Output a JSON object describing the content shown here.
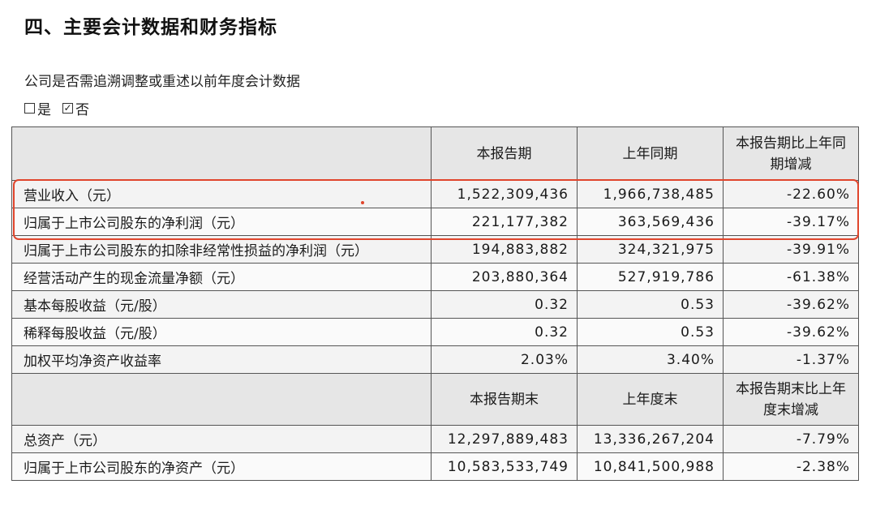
{
  "heading": "四、主要会计数据和财务指标",
  "subtitle": "公司是否需追溯调整或重述以前年度会计数据",
  "options": [
    {
      "mark": "",
      "label": "是"
    },
    {
      "mark": "✓",
      "label": "否"
    }
  ],
  "header1": {
    "label": "",
    "col1": "本报告期",
    "col2": "上年同期",
    "col3": "本报告期比上年同期增减"
  },
  "rows1": [
    {
      "label": "营业收入（元）",
      "cur": "1,522,309,436",
      "prev": "1,966,738,485",
      "chg": "-22.60%"
    },
    {
      "label": "归属于上市公司股东的净利润（元）",
      "cur": "221,177,382",
      "prev": "363,569,436",
      "chg": "-39.17%"
    },
    {
      "label": "归属于上市公司股东的扣除非经常性损益的净利润（元）",
      "cur": "194,883,882",
      "prev": "324,321,975",
      "chg": "-39.91%"
    },
    {
      "label": "经营活动产生的现金流量净额（元）",
      "cur": "203,880,364",
      "prev": "527,919,786",
      "chg": "-61.38%"
    },
    {
      "label": "基本每股收益（元/股）",
      "cur": "0.32",
      "prev": "0.53",
      "chg": "-39.62%"
    },
    {
      "label": "稀释每股收益（元/股）",
      "cur": "0.32",
      "prev": "0.53",
      "chg": "-39.62%"
    },
    {
      "label": "加权平均净资产收益率",
      "cur": "2.03%",
      "prev": "3.40%",
      "chg": "-1.37%"
    }
  ],
  "header2": {
    "label": "",
    "col1": "本报告期末",
    "col2": "上年度末",
    "col3": "本报告期末比上年度末增减"
  },
  "rows2": [
    {
      "label": "总资产（元）",
      "cur": "12,297,889,483",
      "prev": "13,336,267,204",
      "chg": "-7.79%"
    },
    {
      "label": "归属于上市公司股东的净资产（元）",
      "cur": "10,583,533,749",
      "prev": "10,841,500,988",
      "chg": "-2.38%"
    }
  ],
  "highlight_color": "#e0452c"
}
